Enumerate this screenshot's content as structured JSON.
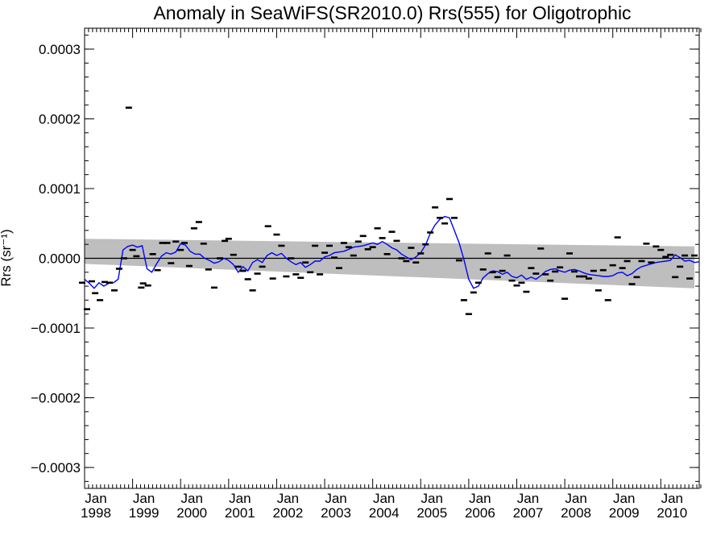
{
  "chart_data": {
    "type": "scatter",
    "title": "Anomaly in SeaWiFS(SR2010.0) Rrs(555) for Oligotrophic",
    "ylabel": "Rrs (sr⁻¹)",
    "xlabel": "",
    "xlim": [
      "1998-01",
      "2010-10"
    ],
    "ylim": [
      -0.00033,
      0.00033
    ],
    "y_ticks": [
      {
        "value": 0.0003,
        "label": "0.0003"
      },
      {
        "value": 0.0002,
        "label": "0.0002"
      },
      {
        "value": 0.0001,
        "label": "0.0001"
      },
      {
        "value": 0.0,
        "label": "0.0000"
      },
      {
        "value": -0.0001,
        "label": "−0.0001"
      },
      {
        "value": -0.0002,
        "label": "−0.0002"
      },
      {
        "value": -0.0003,
        "label": "−0.0003"
      }
    ],
    "x_ticks": [
      {
        "value": 1998,
        "month": "Jan",
        "year": "1998"
      },
      {
        "value": 1999,
        "month": "Jan",
        "year": "1999"
      },
      {
        "value": 2000,
        "month": "Jan",
        "year": "2000"
      },
      {
        "value": 2001,
        "month": "Jan",
        "year": "2001"
      },
      {
        "value": 2002,
        "month": "Jan",
        "year": "2002"
      },
      {
        "value": 2003,
        "month": "Jan",
        "year": "2003"
      },
      {
        "value": 2004,
        "month": "Jan",
        "year": "2004"
      },
      {
        "value": 2005,
        "month": "Jan",
        "year": "2005"
      },
      {
        "value": 2006,
        "month": "Jan",
        "year": "2006"
      },
      {
        "value": 2007,
        "month": "Jan",
        "year": "2007"
      },
      {
        "value": 2008,
        "month": "Jan",
        "year": "2008"
      },
      {
        "value": 2009,
        "month": "Jan",
        "year": "2009"
      },
      {
        "value": 2010,
        "month": "Jan",
        "year": "2010"
      }
    ],
    "monthly_anomaly": {
      "x": [
        1997.95,
        1998.05,
        1998.15,
        1998.22,
        1998.32,
        1998.42,
        1998.52,
        1998.62,
        1998.72,
        1998.82,
        1998.92,
        1999.0,
        1999.08,
        1999.18,
        1999.22,
        1999.32,
        1999.42,
        1999.52,
        1999.62,
        1999.72,
        1999.8,
        1999.9,
        2000.0,
        2000.08,
        2000.18,
        2000.28,
        2000.38,
        2000.48,
        2000.58,
        2000.7,
        2000.82,
        2000.92,
        2001.0,
        2001.1,
        2001.2,
        2001.3,
        2001.4,
        2001.5,
        2001.6,
        2001.7,
        2001.82,
        2001.92,
        2002.0,
        2002.1,
        2002.2,
        2002.3,
        2002.4,
        2002.5,
        2002.6,
        2002.7,
        2002.8,
        2002.9,
        2003.0,
        2003.1,
        2003.2,
        2003.3,
        2003.4,
        2003.5,
        2003.6,
        2003.7,
        2003.8,
        2003.9,
        2004.0,
        2004.1,
        2004.2,
        2004.3,
        2004.4,
        2004.5,
        2004.6,
        2004.7,
        2004.8,
        2004.9,
        2005.0,
        2005.1,
        2005.2,
        2005.3,
        2005.4,
        2005.5,
        2005.6,
        2005.7,
        2005.8,
        2005.9,
        2006.0,
        2006.1,
        2006.2,
        2006.3,
        2006.4,
        2006.5,
        2006.6,
        2006.7,
        2006.8,
        2006.9,
        2007.0,
        2007.1,
        2007.2,
        2007.3,
        2007.4,
        2007.5,
        2007.6,
        2007.7,
        2007.8,
        2007.9,
        2008.0,
        2008.1,
        2008.2,
        2008.3,
        2008.4,
        2008.5,
        2008.6,
        2008.7,
        2008.8,
        2008.9,
        2009.0,
        2009.1,
        2009.2,
        2009.3,
        2009.4,
        2009.5,
        2009.6,
        2009.7,
        2009.8,
        2009.9,
        2010.0,
        2010.1,
        2010.2,
        2010.3,
        2010.4,
        2010.5,
        2010.6,
        2010.7
      ],
      "y": [
        -3.5e-05,
        -7.3e-05,
        -3.3e-05,
        -5e-05,
        -6e-05,
        -3.4e-05,
        -3.5e-05,
        -4.6e-05,
        -1.5e-05,
        0.0,
        0.000216,
        1.2e-05,
        3e-06,
        -4.2e-05,
        -3.6e-05,
        -3.9e-05,
        6e-06,
        -1.7e-05,
        2.2e-05,
        2.2e-05,
        -7e-06,
        2.4e-05,
        1.2e-05,
        2.2e-05,
        -1.1e-05,
        4.3e-05,
        5.2e-05,
        2.1e-05,
        -1.6e-05,
        -4.2e-05,
        0.0,
        2.5e-05,
        2.8e-05,
        5e-06,
        -1.2e-05,
        -1.8e-05,
        -3e-05,
        -4.6e-05,
        -2.2e-05,
        -1.2e-05,
        4.6e-05,
        -2.9e-05,
        3.4e-05,
        1.8e-05,
        -2.6e-05,
        0.0,
        -2.3e-05,
        -2.8e-05,
        -6e-06,
        -2e-05,
        1.8e-05,
        -2.3e-05,
        8e-06,
        1.8e-05,
        1e-06,
        -1.4e-05,
        2.2e-05,
        1.6e-05,
        4e-06,
        2.4e-05,
        3.2e-05,
        1.3e-05,
        1.6e-05,
        4.3e-05,
        2.9e-05,
        6e-06,
        3.8e-05,
        2.5e-05,
        0.0,
        -4e-06,
        1.5e-05,
        -6e-06,
        7e-06,
        2e-05,
        3.7e-05,
        7.3e-05,
        5.8e-05,
        5e-05,
        8.5e-05,
        5.8e-05,
        -3e-06,
        -6e-05,
        -8e-05,
        -4.9e-05,
        -3.5e-05,
        -1.6e-05,
        7e-06,
        -2e-05,
        -2.7e-05,
        -1.8e-05,
        4e-06,
        -3.2e-05,
        -3.9e-05,
        -3.5e-05,
        -4.8e-05,
        -1.4e-05,
        -2.2e-05,
        1.4e-05,
        -2.3e-05,
        -3.2e-05,
        -1.9e-05,
        -1.3e-05,
        -5.8e-05,
        7e-06,
        -1.9e-05,
        -2.6e-05,
        -2.6e-05,
        -2.9e-05,
        -1.8e-05,
        -4.6e-05,
        -1.7e-05,
        -6e-05,
        -1e-05,
        3e-05,
        -1.4e-05,
        -4e-06,
        -3.7e-05,
        -2.7e-05,
        -4e-06,
        2.1e-05,
        -6e-06,
        1.7e-05,
        1.2e-05,
        2e-06,
        5e-06,
        -2.7e-05,
        -1.2e-05,
        4e-06,
        -2.9e-05,
        4e-06
      ]
    },
    "running_mean": {
      "x": [
        1998.0,
        1998.1,
        1998.2,
        1998.3,
        1998.4,
        1998.5,
        1998.6,
        1998.7,
        1998.8,
        1998.9,
        1999.0,
        1999.1,
        1999.2,
        1999.3,
        1999.4,
        1999.5,
        1999.6,
        1999.7,
        1999.8,
        1999.9,
        2000.0,
        2000.1,
        2000.2,
        2000.3,
        2000.4,
        2000.5,
        2000.6,
        2000.7,
        2000.8,
        2000.9,
        2001.0,
        2001.1,
        2001.2,
        2001.3,
        2001.4,
        2001.5,
        2001.6,
        2001.7,
        2001.8,
        2001.9,
        2002.0,
        2002.1,
        2002.2,
        2002.3,
        2002.4,
        2002.5,
        2002.6,
        2002.7,
        2002.8,
        2002.9,
        2003.0,
        2003.1,
        2003.2,
        2003.3,
        2003.4,
        2003.5,
        2003.6,
        2003.7,
        2003.8,
        2003.9,
        2004.0,
        2004.1,
        2004.2,
        2004.3,
        2004.4,
        2004.5,
        2004.6,
        2004.7,
        2004.8,
        2004.9,
        2005.0,
        2005.1,
        2005.2,
        2005.3,
        2005.4,
        2005.5,
        2005.6,
        2005.7,
        2005.8,
        2005.9,
        2006.0,
        2006.1,
        2006.2,
        2006.3,
        2006.4,
        2006.5,
        2006.6,
        2006.7,
        2006.8,
        2006.9,
        2007.0,
        2007.1,
        2007.2,
        2007.3,
        2007.4,
        2007.5,
        2007.6,
        2007.7,
        2007.8,
        2007.9,
        2008.0,
        2008.1,
        2008.2,
        2008.3,
        2008.4,
        2008.5,
        2008.6,
        2008.7,
        2008.8,
        2008.9,
        2009.0,
        2009.1,
        2009.2,
        2009.3,
        2009.4,
        2009.5,
        2009.6,
        2009.7,
        2009.8,
        2009.9,
        2010.0,
        2010.1,
        2010.2,
        2010.3,
        2010.4,
        2010.5,
        2010.6,
        2010.7,
        2010.8
      ],
      "y": [
        -3e-05,
        -3.6e-05,
        -4.3e-05,
        -3.5e-05,
        -4e-05,
        -3.6e-05,
        -3.5e-05,
        -3e-05,
        1.2e-05,
        1.7e-05,
        1.9e-05,
        1.6e-05,
        1.8e-05,
        -1.5e-05,
        -2e-05,
        -8e-06,
        3e-06,
        8e-06,
        6e-06,
        9e-06,
        2.1e-05,
        1.9e-05,
        1e-05,
        6e-06,
        6e-06,
        0.0,
        -3e-06,
        -7e-06,
        -5e-06,
        0.0,
        -3e-06,
        -9e-06,
        -2e-05,
        -1.2e-05,
        -1.8e-05,
        -6e-06,
        -2e-06,
        -6e-06,
        4e-06,
        8e-06,
        4e-06,
        7e-06,
        0.0,
        -5e-06,
        -9e-06,
        -6e-06,
        -1.3e-05,
        -9e-06,
        -4e-06,
        -4e-06,
        2e-06,
        4e-06,
        8e-06,
        9e-06,
        1e-05,
        1.3e-05,
        1.6e-05,
        1.7e-05,
        1.8e-05,
        2e-05,
        2.2e-05,
        2e-05,
        2.4e-05,
        2e-05,
        1.5e-05,
        1.2e-05,
        6e-06,
        2e-06,
        -2e-06,
        2e-06,
        8e-06,
        1.9e-05,
        3.6e-05,
        4.8e-05,
        5.6e-05,
        6e-05,
        5.8e-05,
        4e-05,
        2.2e-05,
        -2e-06,
        -3e-05,
        -4.3e-05,
        -4e-05,
        -2.8e-05,
        -2.2e-05,
        -1.8e-05,
        -1.9e-05,
        -2.3e-05,
        -2e-05,
        -2.6e-05,
        -2.8e-05,
        -2.4e-05,
        -3e-05,
        -2.7e-05,
        -3e-05,
        -2.5e-05,
        -1.9e-05,
        -1.6e-05,
        -1.5e-05,
        -1.8e-05,
        -2e-05,
        -1.7e-05,
        -1.6e-05,
        -1.8e-05,
        -2.1e-05,
        -2.3e-05,
        -2.4e-05,
        -2.5e-05,
        -2.6e-05,
        -2.6e-05,
        -2.5e-05,
        -2.1e-05,
        -2e-05,
        -2.5e-05,
        -2.2e-05,
        -1.6e-05,
        -1.2e-05,
        -1e-05,
        -8e-06,
        -6e-06,
        -5e-06,
        -4e-06,
        -3e-06,
        5e-06,
        1e-06,
        -4e-06,
        -3e-06,
        -6e-06,
        -5e-06
      ]
    },
    "trend_band": {
      "x": [
        1998.0,
        2010.7
      ],
      "upper": [
        2.8e-05,
        1.7e-05
      ],
      "lower": [
        -8e-06,
        -4.3e-05
      ]
    },
    "colors": {
      "running_mean": "#0000ff",
      "band": "#bebebe",
      "points": "#000000",
      "zero_line": "#000000"
    }
  }
}
